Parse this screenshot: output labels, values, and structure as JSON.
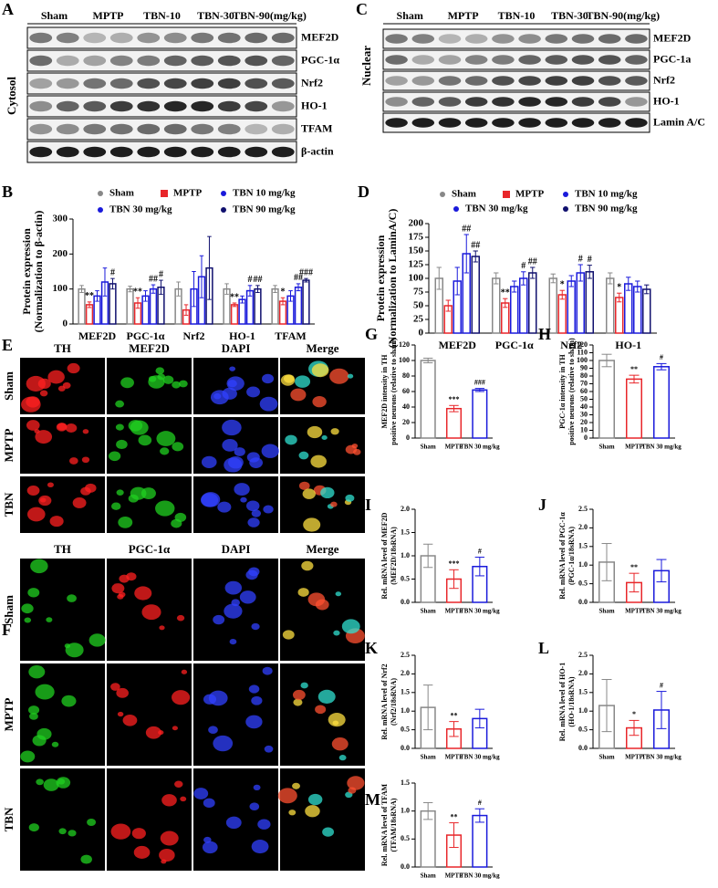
{
  "blot_a": {
    "panel": "A",
    "groups": [
      "Sham",
      "MPTP",
      "TBN-10",
      "TBN-30",
      "TBN-90(mg/kg)"
    ],
    "fraction": "Cytosol",
    "proteins": [
      "MEF2D",
      "PGC-1α",
      "Nrf2",
      "HO-1",
      "TFAM",
      "β-actin"
    ]
  },
  "blot_c": {
    "panel": "C",
    "groups": [
      "Sham",
      "MPTP",
      "TBN-10",
      "TBN-30",
      "TBN-90(mg/kg)"
    ],
    "fraction": "Nuclear",
    "proteins": [
      "MEF2D",
      "PGC-1a",
      "Nrf2",
      "HO-1",
      "Lamin A/C"
    ]
  },
  "image_e": {
    "panel": "E",
    "columns": [
      "TH",
      "MEF2D",
      "DAPI",
      "Merge"
    ],
    "column_colors": [
      "#ff2020",
      "#20d020",
      "#3040ff",
      "#ffffff"
    ],
    "rows": [
      "Sham",
      "MPTP",
      "TBN"
    ]
  },
  "image_f": {
    "panel": "F",
    "columns": [
      "TH",
      "PGC-1α",
      "DAPI",
      "Merge"
    ],
    "column_colors": [
      "#20d020",
      "#ff2020",
      "#3040ff",
      "#ffffff"
    ],
    "rows": [
      "Sham",
      "MPTP",
      "TBN"
    ]
  },
  "chart_data": [
    {
      "type": "grouped-bar",
      "panel": "B",
      "ylabel": [
        "Protein expression",
        "(Normalization to β-actin)"
      ],
      "categories": [
        "MEF2D",
        "PGC-1α",
        "Nrf2",
        "HO-1",
        "TFAM"
      ],
      "ylim": [
        0,
        300
      ],
      "yticks": [
        0,
        100,
        200,
        300
      ],
      "series": [
        {
          "name": "Sham",
          "color": "#888888",
          "values": [
            100,
            100,
            100,
            100,
            100
          ],
          "errors": [
            10,
            8,
            20,
            15,
            10
          ],
          "significance": [
            null,
            null,
            null,
            null,
            null
          ]
        },
        {
          "name": "MPTP",
          "color": "#e8262a",
          "values": [
            55,
            60,
            40,
            55,
            65
          ],
          "errors": [
            8,
            15,
            15,
            5,
            10
          ],
          "significance": [
            "**",
            "**",
            null,
            "**",
            "*"
          ]
        },
        {
          "name": "TBN 10 mg/kg",
          "color": "#1a1adb",
          "values": [
            80,
            80,
            100,
            70,
            80
          ],
          "errors": [
            15,
            15,
            50,
            10,
            15
          ],
          "significance": [
            null,
            null,
            null,
            null,
            null
          ]
        },
        {
          "name": "TBN 30 mg/kg",
          "color": "#1a1adb",
          "values": [
            120,
            100,
            135,
            95,
            105
          ],
          "errors": [
            40,
            12,
            60,
            15,
            10
          ],
          "significance": [
            null,
            "##",
            null,
            "#",
            "##"
          ]
        },
        {
          "name": "TBN 90 mg/kg",
          "color": "#10106e",
          "values": [
            115,
            105,
            160,
            100,
            125
          ],
          "errors": [
            15,
            20,
            90,
            10,
            5
          ],
          "significance": [
            "#",
            "#",
            null,
            "##",
            "###"
          ]
        }
      ]
    },
    {
      "type": "grouped-bar",
      "panel": "D",
      "ylabel": [
        "Protein expression",
        "(Normalization to LaminA/C)"
      ],
      "categories": [
        "MEF2D",
        "PGC-1α",
        "Nrf2",
        "HO-1"
      ],
      "ylim": [
        0,
        200
      ],
      "yticks": [
        0,
        25,
        50,
        75,
        100,
        125,
        150,
        175,
        200
      ],
      "series": [
        {
          "name": "Sham",
          "color": "#888888",
          "values": [
            100,
            100,
            100,
            100
          ],
          "errors": [
            20,
            10,
            8,
            10
          ],
          "significance": [
            null,
            null,
            null,
            null
          ]
        },
        {
          "name": "MPTP",
          "color": "#e8262a",
          "values": [
            50,
            55,
            70,
            65
          ],
          "errors": [
            10,
            8,
            8,
            8
          ],
          "significance": [
            null,
            "**",
            "*",
            "*"
          ]
        },
        {
          "name": "TBN 10 mg/kg",
          "color": "#1a1adb",
          "values": [
            95,
            85,
            95,
            90
          ],
          "errors": [
            25,
            10,
            10,
            12
          ],
          "significance": [
            null,
            null,
            null,
            null
          ]
        },
        {
          "name": "TBN 30 mg/kg",
          "color": "#1a1adb",
          "values": [
            145,
            100,
            110,
            85
          ],
          "errors": [
            35,
            12,
            15,
            10
          ],
          "significance": [
            "##",
            "#",
            "#",
            null
          ]
        },
        {
          "name": "TBN 90 mg/kg",
          "color": "#10106e",
          "values": [
            140,
            110,
            112,
            80
          ],
          "errors": [
            10,
            10,
            12,
            8
          ],
          "significance": [
            "##",
            "##",
            "#",
            null
          ]
        }
      ]
    },
    {
      "type": "bar",
      "panel": "G",
      "ylabel": [
        "MEF2D intensity in TH",
        "positive neurons (relative to sham)"
      ],
      "categories": [
        "Sham",
        "MPTP",
        "TBN 30 mg/kg"
      ],
      "colors": [
        "#888888",
        "#e8262a",
        "#1a1adb"
      ],
      "values": [
        100,
        38,
        62
      ],
      "errors": [
        3,
        4,
        2
      ],
      "significance": [
        null,
        "***",
        "###"
      ],
      "ylim": [
        0,
        120
      ],
      "yticks": [
        0,
        20,
        40,
        60,
        80,
        100,
        120
      ]
    },
    {
      "type": "bar",
      "panel": "H",
      "ylabel": [
        "PGC-1α intensity in TH",
        "positive neurons (relative to sham)"
      ],
      "categories": [
        "Sham",
        "MPTP",
        "TBN 30 mg/kg"
      ],
      "colors": [
        "#888888",
        "#e8262a",
        "#1a1adb"
      ],
      "values": [
        100,
        76,
        92
      ],
      "errors": [
        8,
        5,
        4
      ],
      "significance": [
        null,
        "**",
        "#"
      ],
      "ylim": [
        0,
        120
      ],
      "yticks": [
        0,
        10,
        20,
        30,
        40,
        50,
        60,
        70,
        80,
        90,
        100,
        110,
        120
      ]
    },
    {
      "type": "bar",
      "panel": "I",
      "ylabel": [
        "Rel. mRNA level of MEF2D",
        "(MEF2D/18sRNA)"
      ],
      "categories": [
        "Sham",
        "MPTP",
        "TBN 30 mg/kg"
      ],
      "colors": [
        "#888888",
        "#e8262a",
        "#1a1adb"
      ],
      "values": [
        1.0,
        0.5,
        0.77
      ],
      "errors": [
        0.25,
        0.2,
        0.2
      ],
      "significance": [
        null,
        "***",
        "#"
      ],
      "ylim": [
        0,
        2
      ],
      "yticks": [
        {
          "value": 0,
          "label": "0.0"
        },
        0.5,
        {
          "value": 1,
          "label": "1.0"
        },
        1.5,
        {
          "value": 2,
          "label": "2.0"
        }
      ]
    },
    {
      "type": "bar",
      "panel": "J",
      "ylabel": [
        "Rel. mRNA level of PGC-1α",
        "(PGC-1α/18sRNA)"
      ],
      "categories": [
        "Sham",
        "MPTP",
        "TBN 30 mg/kg"
      ],
      "colors": [
        "#888888",
        "#e8262a",
        "#1a1adb"
      ],
      "values": [
        1.08,
        0.53,
        0.85
      ],
      "errors": [
        0.5,
        0.25,
        0.3
      ],
      "significance": [
        null,
        "**",
        null
      ],
      "ylim": [
        0,
        2.5
      ],
      "yticks": [
        {
          "value": 0,
          "label": "0.0"
        },
        0.5,
        {
          "value": 1,
          "label": "1.0"
        },
        1.5,
        {
          "value": 2,
          "label": "2.0"
        },
        2.5
      ]
    },
    {
      "type": "bar",
      "panel": "K",
      "ylabel": [
        "Rel. mRNA level of Nrf2",
        "(Nrf2/18sRNA)"
      ],
      "categories": [
        "Sham",
        "MPTP",
        "TBN 30 mg/kg"
      ],
      "colors": [
        "#888888",
        "#e8262a",
        "#1a1adb"
      ],
      "values": [
        1.1,
        0.52,
        0.8
      ],
      "errors": [
        0.6,
        0.2,
        0.25
      ],
      "significance": [
        null,
        "**",
        null
      ],
      "ylim": [
        0,
        2.5
      ],
      "yticks": [
        {
          "value": 0,
          "label": "0.0"
        },
        0.5,
        {
          "value": 1,
          "label": "1.0"
        },
        1.5,
        {
          "value": 2,
          "label": "2.0"
        },
        2.5
      ]
    },
    {
      "type": "bar",
      "panel": "L",
      "ylabel": [
        "Rel. mRNA level of HO-1",
        "(HO-1/18sRNA)"
      ],
      "categories": [
        "Sham",
        "MPTP",
        "TBN 30 mg/kg"
      ],
      "colors": [
        "#888888",
        "#e8262a",
        "#1a1adb"
      ],
      "values": [
        1.15,
        0.55,
        1.03
      ],
      "errors": [
        0.7,
        0.2,
        0.5
      ],
      "significance": [
        null,
        "*",
        "#"
      ],
      "ylim": [
        0,
        2.5
      ],
      "yticks": [
        {
          "value": 0,
          "label": "0.0"
        },
        0.5,
        {
          "value": 1,
          "label": "1.0"
        },
        1.5,
        {
          "value": 2,
          "label": "2.0"
        },
        2.5
      ]
    },
    {
      "type": "bar",
      "panel": "M",
      "ylabel": [
        "Rel. mRNA level of TFAM",
        "(TFAM/18sRNA)"
      ],
      "categories": [
        "Sham",
        "MPTP",
        "TBN 30 mg/kg"
      ],
      "colors": [
        "#888888",
        "#e8262a",
        "#1a1adb"
      ],
      "values": [
        1.0,
        0.57,
        0.92
      ],
      "errors": [
        0.15,
        0.22,
        0.12
      ],
      "significance": [
        null,
        "**",
        "#"
      ],
      "ylim": [
        0,
        1.5
      ],
      "yticks": [
        {
          "value": 0,
          "label": "0.0"
        },
        0.5,
        {
          "value": 1,
          "label": "1.0"
        },
        1.5
      ]
    }
  ]
}
